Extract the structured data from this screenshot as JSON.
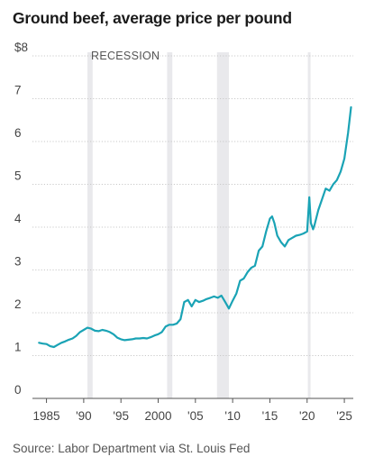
{
  "chart_data": {
    "type": "line",
    "title": "Ground beef, average price per pound",
    "source": "Source: Labor Department via St. Louis Fed",
    "annotation": "RECESSION",
    "ylim": [
      0,
      8
    ],
    "xlim": [
      1983.6,
      2026.2
    ],
    "y_ticks": [
      {
        "value": 8,
        "label": "$8"
      },
      {
        "value": 7,
        "label": "7"
      },
      {
        "value": 6,
        "label": "6"
      },
      {
        "value": 5,
        "label": "5"
      },
      {
        "value": 4,
        "label": "4"
      },
      {
        "value": 3,
        "label": "3"
      },
      {
        "value": 2,
        "label": "2"
      },
      {
        "value": 1,
        "label": "1"
      },
      {
        "value": 0,
        "label": "0"
      }
    ],
    "x_ticks": [
      {
        "value": 1985,
        "label": "1985"
      },
      {
        "value": 1990,
        "label": "'90"
      },
      {
        "value": 1995,
        "label": "'95"
      },
      {
        "value": 2000,
        "label": "2000"
      },
      {
        "value": 2005,
        "label": "'05"
      },
      {
        "value": 2010,
        "label": "'10"
      },
      {
        "value": 2015,
        "label": "'15"
      },
      {
        "value": 2020,
        "label": "'20"
      },
      {
        "value": 2025,
        "label": "'25"
      }
    ],
    "recessions": [
      [
        1990.5,
        1991.2
      ],
      [
        2001.2,
        2001.9
      ],
      [
        2007.9,
        2009.5
      ],
      [
        2020.1,
        2020.4
      ]
    ],
    "series": [
      {
        "color": "#1aa3b5",
        "x": [
          1984.0,
          1984.5,
          1985.0,
          1985.5,
          1986.0,
          1986.5,
          1987.0,
          1987.5,
          1988.0,
          1988.5,
          1989.0,
          1989.5,
          1990.0,
          1990.5,
          1991.0,
          1991.5,
          1992.0,
          1992.5,
          1993.0,
          1993.5,
          1994.0,
          1994.5,
          1995.0,
          1995.5,
          1996.0,
          1996.5,
          1997.0,
          1997.5,
          1998.0,
          1998.5,
          1999.0,
          1999.5,
          2000.0,
          2000.5,
          2001.0,
          2001.5,
          2002.0,
          2002.5,
          2003.0,
          2003.5,
          2004.0,
          2004.5,
          2005.0,
          2005.5,
          2006.0,
          2006.5,
          2007.0,
          2007.5,
          2008.0,
          2008.5,
          2009.0,
          2009.5,
          2010.0,
          2010.5,
          2011.0,
          2011.5,
          2012.0,
          2012.5,
          2013.0,
          2013.5,
          2014.0,
          2014.5,
          2015.0,
          2015.3,
          2015.6,
          2016.0,
          2016.5,
          2017.0,
          2017.5,
          2018.0,
          2018.5,
          2019.0,
          2019.5,
          2020.0,
          2020.3,
          2020.5,
          2020.8,
          2021.0,
          2021.5,
          2022.0,
          2022.5,
          2023.0,
          2023.5,
          2024.0,
          2024.5,
          2025.0,
          2025.5,
          2025.9
        ],
        "values": [
          1.3,
          1.28,
          1.27,
          1.22,
          1.2,
          1.25,
          1.3,
          1.33,
          1.37,
          1.4,
          1.46,
          1.55,
          1.6,
          1.65,
          1.63,
          1.58,
          1.57,
          1.6,
          1.58,
          1.55,
          1.5,
          1.42,
          1.38,
          1.36,
          1.37,
          1.38,
          1.4,
          1.4,
          1.41,
          1.4,
          1.43,
          1.47,
          1.5,
          1.55,
          1.68,
          1.72,
          1.72,
          1.75,
          1.85,
          2.25,
          2.3,
          2.15,
          2.3,
          2.25,
          2.28,
          2.32,
          2.35,
          2.38,
          2.35,
          2.4,
          2.25,
          2.1,
          2.28,
          2.45,
          2.75,
          2.8,
          2.95,
          3.05,
          3.1,
          3.45,
          3.55,
          3.9,
          4.2,
          4.25,
          4.1,
          3.8,
          3.65,
          3.55,
          3.7,
          3.75,
          3.8,
          3.82,
          3.85,
          3.9,
          4.7,
          4.1,
          3.95,
          4.05,
          4.4,
          4.65,
          4.9,
          4.85,
          5.0,
          5.1,
          5.3,
          5.6,
          6.2,
          6.8
        ]
      }
    ]
  }
}
